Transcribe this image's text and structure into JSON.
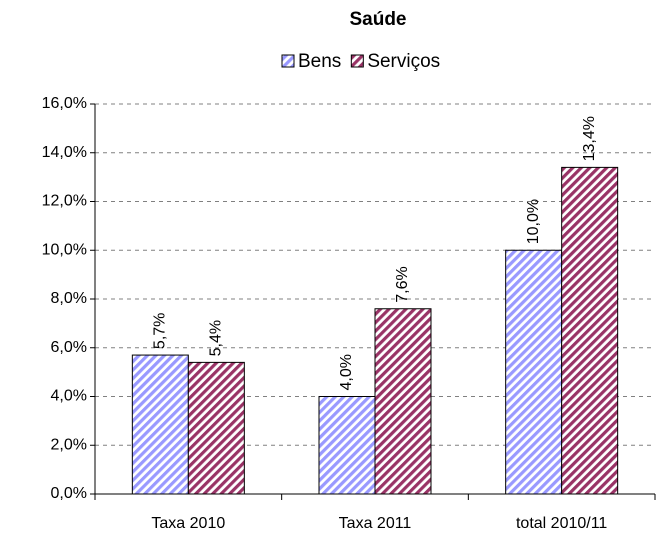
{
  "chart_data": {
    "type": "bar",
    "title": "Saúde",
    "categories": [
      "Taxa 2010",
      "Taxa 2011",
      "total 2010/11"
    ],
    "series": [
      {
        "name": "Bens",
        "color": "#9999ff",
        "values": [
          5.7,
          4.0,
          10.0
        ],
        "value_labels": [
          "5,7%",
          "4,0%",
          "10,0%"
        ]
      },
      {
        "name": "Serviços",
        "color": "#993366",
        "values": [
          5.4,
          7.6,
          13.4
        ],
        "value_labels": [
          "5,4%",
          "7,6%",
          "13,4%"
        ]
      }
    ],
    "ylim": [
      0,
      16
    ],
    "yticks": [
      {
        "value": 0,
        "label": "0,0%"
      },
      {
        "value": 2,
        "label": "2,0%"
      },
      {
        "value": 4,
        "label": "4,0%"
      },
      {
        "value": 6,
        "label": "6,0%"
      },
      {
        "value": 8,
        "label": "8,0%"
      },
      {
        "value": 10,
        "label": "10,0%"
      },
      {
        "value": 12,
        "label": "12,0%"
      },
      {
        "value": 14,
        "label": "14,0%"
      },
      {
        "value": 16,
        "label": "16,0%"
      }
    ],
    "grid": true,
    "legend": "top"
  }
}
